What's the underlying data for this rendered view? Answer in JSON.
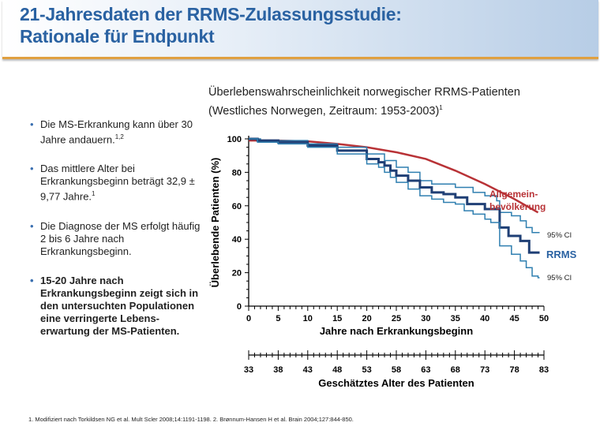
{
  "header": {
    "line1": "21-Jahresdaten der RRMS-Zulassungsstudie:",
    "line2": "Rationale für Endpunkt"
  },
  "bullets": [
    {
      "text": "Die MS-Erkrankung kann über 30 Jahre andauern.",
      "sup": "1,2",
      "bold": false
    },
    {
      "text": "Das mittlere Alter bei Erkrankungsbeginn beträgt 32,9 ± 9,77 Jahre.",
      "sup": "1",
      "bold": false
    },
    {
      "text": "Die Diagnose der MS erfolgt häufig 2 bis 6 Jahre nach Erkrankungsbeginn.",
      "sup": "",
      "bold": false
    },
    {
      "text": "15-20 Jahre nach Erkrankungsbeginn zeigt sich in den untersuchten Populationen eine verringerte Lebens-erwartung der MS-Patienten.",
      "sup": "",
      "bold": true
    }
  ],
  "footnote": "1. Modifiziert nach Torkildsen NG et al. Mult Scler 2008;14:1191-1198. 2. Brønnum-Hansen H et al. Brain 2004;127:844-850.",
  "chart_data": {
    "type": "line",
    "title_line1": "Überlebenswahrscheinlichkeit norwegischer RRMS-Patienten",
    "title_line2": "(Westliches Norwegen, Zeitraum: 1953-2003)",
    "title_sup": "1",
    "xlabel": "Jahre nach Erkrankungsbeginn",
    "ylabel": "Überlebende Patienten (%)",
    "xlim": [
      0,
      50
    ],
    "ylim": [
      0,
      100
    ],
    "xticks": [
      0,
      5,
      10,
      15,
      20,
      25,
      30,
      35,
      40,
      45,
      50
    ],
    "yticks": [
      0,
      20,
      40,
      60,
      80,
      100
    ],
    "x2label": "Geschätztes Alter des Patienten",
    "x2ticks": [
      33,
      38,
      43,
      48,
      53,
      58,
      63,
      68,
      73,
      78,
      83
    ],
    "series": [
      {
        "name": "Allgemein-bevölkerung",
        "color": "#b83236",
        "step": false,
        "x": [
          0,
          5,
          10,
          15,
          20,
          25,
          30,
          35,
          40,
          45,
          49
        ],
        "y": [
          99,
          99,
          98.5,
          97,
          95,
          92,
          88,
          81,
          73,
          64,
          56
        ]
      },
      {
        "name": "95% CI",
        "color": "#2f7fb0",
        "step": true,
        "x": [
          0,
          2,
          10,
          15,
          20,
          23,
          25,
          27,
          29,
          31,
          35,
          38,
          40,
          42,
          42.5,
          44.5,
          46,
          47,
          48,
          49
        ],
        "y": [
          100,
          99,
          97,
          95,
          91,
          87,
          83,
          80,
          75,
          73,
          71,
          68,
          66,
          63,
          56,
          54,
          51,
          47,
          44,
          44
        ]
      },
      {
        "name": "RRMS",
        "color": "#1f3f75",
        "step": true,
        "x": [
          0,
          1.5,
          5,
          10,
          15,
          20,
          22,
          23,
          24,
          25,
          27,
          29,
          31,
          33,
          35,
          37,
          40,
          42.5,
          44,
          46,
          47.5,
          49
        ],
        "y": [
          100,
          99,
          98,
          96,
          93,
          88,
          86,
          84,
          81,
          78,
          75,
          71,
          68,
          67,
          65,
          61,
          58,
          47,
          42,
          39,
          32,
          32
        ]
      },
      {
        "name": "95% CI",
        "color": "#2f7fb0",
        "step": true,
        "x": [
          0,
          1.5,
          5,
          10,
          15,
          20,
          22,
          23,
          24,
          25,
          27,
          29,
          31,
          33,
          35,
          36.5,
          38,
          40,
          41,
          42.5,
          44.5,
          46,
          47,
          48,
          49
        ],
        "y": [
          100,
          98,
          97,
          95,
          91,
          85,
          83,
          80,
          77,
          74,
          70,
          66,
          64,
          62,
          61,
          57,
          55,
          52,
          50,
          36,
          31,
          27,
          23,
          18,
          17
        ]
      }
    ],
    "labels": {
      "general": [
        "Allgemein-",
        "bevölkerung"
      ],
      "rrms": "RRMS",
      "ci_upper": "95% CI",
      "ci_lower": "95% CI"
    }
  }
}
